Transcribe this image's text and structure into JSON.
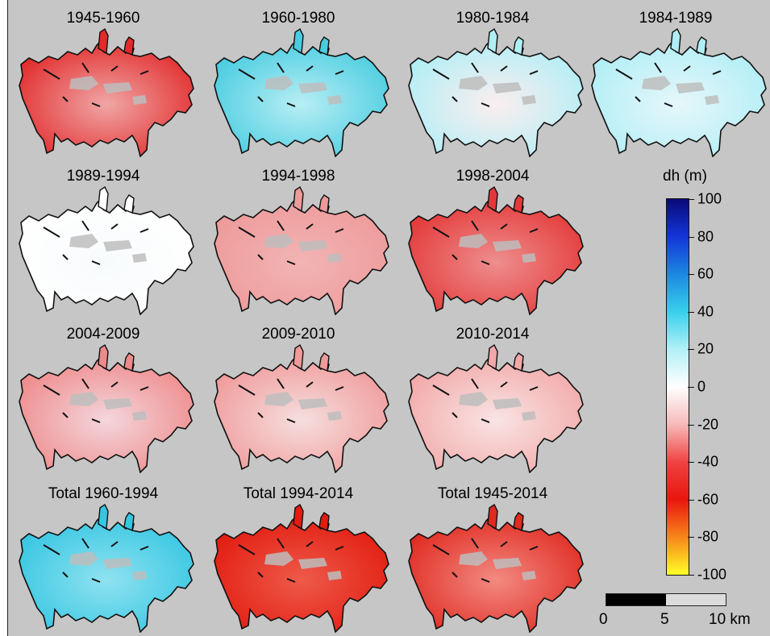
{
  "panels": [
    {
      "title": "1945-1960",
      "fill": "#f0a6a6",
      "edge": "#e22a2a"
    },
    {
      "title": "1960-1980",
      "fill": "#b8eef4",
      "edge": "#48cce0"
    },
    {
      "title": "1980-1984",
      "fill": "#fbeeee",
      "edge": "#b0eef6"
    },
    {
      "title": "1984-1989",
      "fill": "#e6f7fa",
      "edge": "#b0eef6"
    },
    {
      "title": "1989-1994",
      "fill": "#f8fbfc",
      "edge": "#ffffff"
    },
    {
      "title": "1994-1998",
      "fill": "#f2b4b4",
      "edge": "#ee9a9a"
    },
    {
      "title": "1998-2004",
      "fill": "#ee8e8e",
      "edge": "#e43838"
    },
    {
      "title": "2004-2009",
      "fill": "#f3d6dc",
      "edge": "#ef8a8a"
    },
    {
      "title": "2009-2010",
      "fill": "#f6dede",
      "edge": "#f09a9a"
    },
    {
      "title": "2010-2014",
      "fill": "#f9e4e4",
      "edge": "#f2a8a8"
    },
    {
      "title": "Total 1960-1994",
      "fill": "#8fe2f0",
      "edge": "#36c6e2"
    },
    {
      "title": "Total 1994-2014",
      "fill": "#ee5a4a",
      "edge": "#e21c10"
    },
    {
      "title": "Total 1945-2014",
      "fill": "#f28a82",
      "edge": "#e02a20"
    }
  ],
  "colorbar": {
    "title": "dh (m)",
    "ticks": [
      "100",
      "80",
      "60",
      "40",
      "20",
      "0",
      "-20",
      "-40",
      "-60",
      "-80",
      "-100"
    ]
  },
  "scalebar": {
    "labels": [
      "0",
      "5",
      "10 km"
    ]
  }
}
